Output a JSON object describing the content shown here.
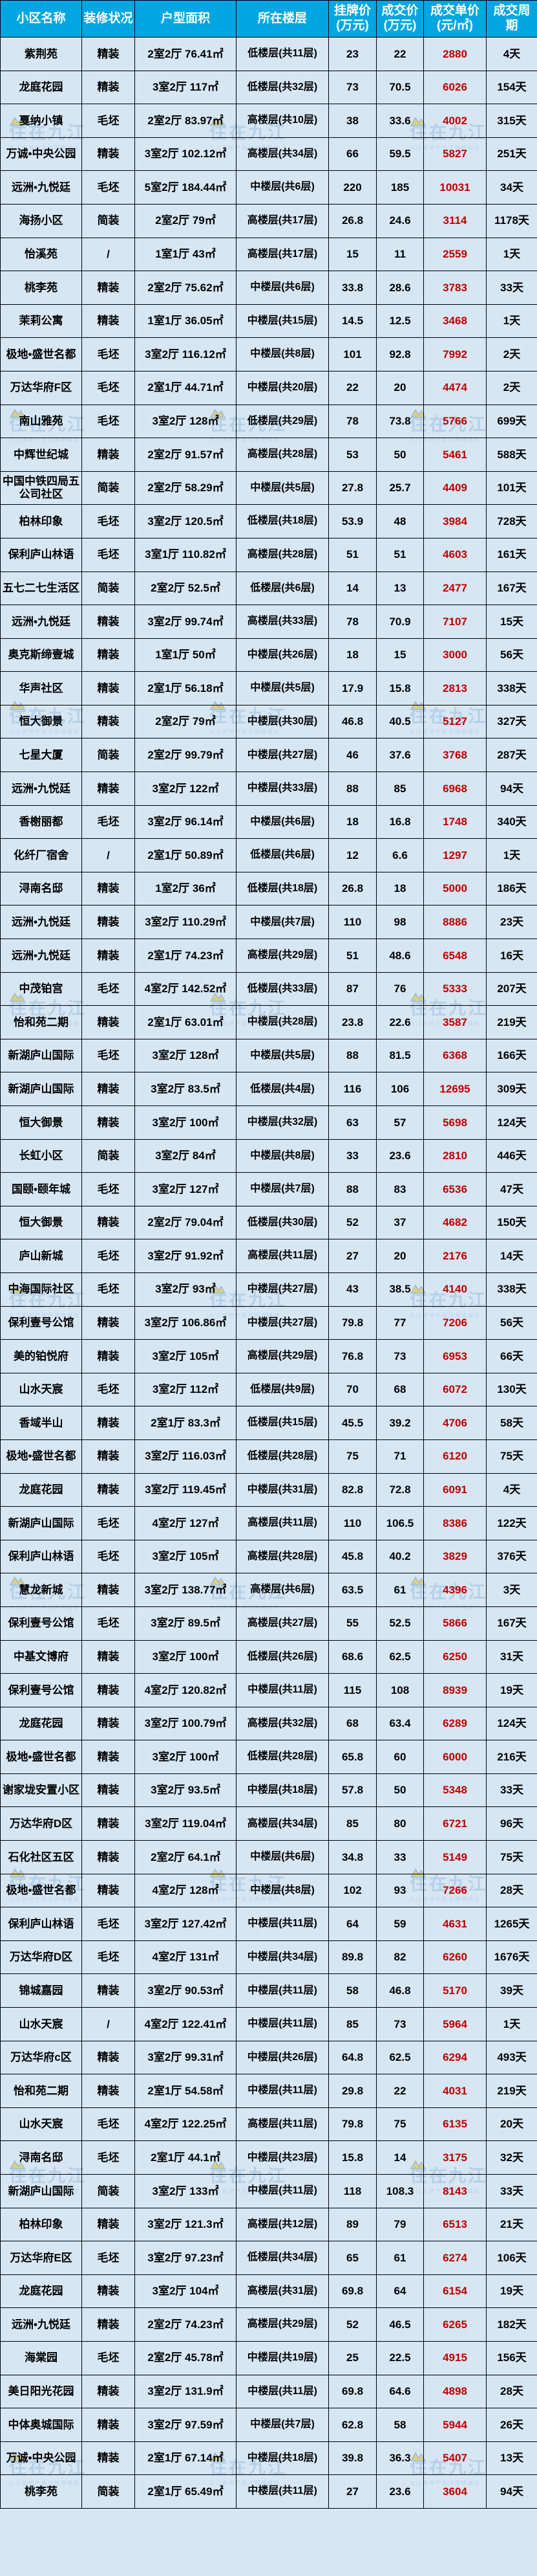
{
  "chart_data": {
    "type": "table",
    "columns": [
      {
        "key": "community-name",
        "label": "小区名称"
      },
      {
        "key": "decoration-status",
        "label": "装修状况"
      },
      {
        "key": "layout-area",
        "label": "户型面积"
      },
      {
        "key": "floor-level",
        "label": "所在楼层"
      },
      {
        "key": "listing-price",
        "label": "挂牌价\n(万元)"
      },
      {
        "key": "deal-price",
        "label": "成交价\n(万元)"
      },
      {
        "key": "unit-price",
        "label": "成交单价\n(元/㎡)"
      },
      {
        "key": "deal-cycle",
        "label": "成交周期"
      }
    ],
    "rows": [
      [
        "紫荆苑",
        "精装",
        "2室2厅 76.41㎡",
        "低楼层(共11层)",
        "23",
        "22",
        "2880",
        "4天"
      ],
      [
        "龙庭花园",
        "精装",
        "3室2厅 117㎡",
        "低楼层(共32层)",
        "73",
        "70.5",
        "6026",
        "154天"
      ],
      [
        "戛纳小镇",
        "毛坯",
        "2室2厅 83.97㎡",
        "高楼层(共10层)",
        "38",
        "33.6",
        "4002",
        "315天"
      ],
      [
        "万诚•中央公园",
        "精装",
        "3室2厅 102.12㎡",
        "高楼层(共34层)",
        "66",
        "59.5",
        "5827",
        "251天"
      ],
      [
        "远洲•九悦廷",
        "毛坯",
        "5室2厅 184.44㎡",
        "中楼层(共6层)",
        "220",
        "185",
        "10031",
        "34天"
      ],
      [
        "海扬小区",
        "简装",
        "2室2厅 79㎡",
        "高楼层(共17层)",
        "26.8",
        "24.6",
        "3114",
        "1178天"
      ],
      [
        "怡溪苑",
        "/",
        "1室1厅 43㎡",
        "高楼层(共17层)",
        "15",
        "11",
        "2559",
        "1天"
      ],
      [
        "桃李苑",
        "精装",
        "2室2厅 75.62㎡",
        "中楼层(共6层)",
        "33.8",
        "28.6",
        "3783",
        "33天"
      ],
      [
        "茉莉公寓",
        "精装",
        "1室1厅 36.05㎡",
        "中楼层(共15层)",
        "14.5",
        "12.5",
        "3468",
        "1天"
      ],
      [
        "极地•盛世名都",
        "毛坯",
        "3室2厅 116.12㎡",
        "中楼层(共8层)",
        "101",
        "92.8",
        "7992",
        "2天"
      ],
      [
        "万达华府F区",
        "毛坯",
        "2室1厅 44.71㎡",
        "中楼层(共20层)",
        "22",
        "20",
        "4474",
        "2天"
      ],
      [
        "南山雅苑",
        "毛坯",
        "3室2厅 128㎡",
        "低楼层(共29层)",
        "78",
        "73.8",
        "5766",
        "699天"
      ],
      [
        "中辉世纪城",
        "精装",
        "2室2厅 91.57㎡",
        "高楼层(共28层)",
        "53",
        "50",
        "5461",
        "588天"
      ],
      [
        "中国中铁四局五公司社区",
        "简装",
        "2室2厅 58.29㎡",
        "中楼层(共5层)",
        "27.8",
        "25.7",
        "4409",
        "101天"
      ],
      [
        "柏林印象",
        "毛坯",
        "3室2厅 120.5㎡",
        "低楼层(共18层)",
        "53.9",
        "48",
        "3984",
        "728天"
      ],
      [
        "保利庐山林语",
        "毛坯",
        "3室1厅 110.82㎡",
        "高楼层(共28层)",
        "51",
        "51",
        "4603",
        "161天"
      ],
      [
        "五七二七生活区",
        "简装",
        "2室2厅 52.5㎡",
        "低楼层(共6层)",
        "14",
        "13",
        "2477",
        "167天"
      ],
      [
        "远洲•九悦廷",
        "精装",
        "3室2厅 99.74㎡",
        "高楼层(共33层)",
        "78",
        "70.9",
        "7107",
        "15天"
      ],
      [
        "奥克斯缔壹城",
        "精装",
        "1室1厅 50㎡",
        "中楼层(共26层)",
        "18",
        "15",
        "3000",
        "56天"
      ],
      [
        "华声社区",
        "精装",
        "2室1厅 56.18㎡",
        "中楼层(共5层)",
        "17.9",
        "15.8",
        "2813",
        "338天"
      ],
      [
        "恒大御景",
        "精装",
        "2室2厅 79㎡",
        "中楼层(共30层)",
        "46.8",
        "40.5",
        "5127",
        "327天"
      ],
      [
        "七星大厦",
        "简装",
        "2室2厅 99.79㎡",
        "中楼层(共27层)",
        "46",
        "37.6",
        "3768",
        "287天"
      ],
      [
        "远洲•九悦廷",
        "精装",
        "3室2厅 122㎡",
        "中楼层(共33层)",
        "88",
        "85",
        "6968",
        "94天"
      ],
      [
        "香榭丽都",
        "毛坯",
        "3室2厅 96.14㎡",
        "中楼层(共6层)",
        "18",
        "16.8",
        "1748",
        "340天"
      ],
      [
        "化纤厂宿舍",
        "/",
        "2室1厅 50.89㎡",
        "低楼层(共6层)",
        "12",
        "6.6",
        "1297",
        "1天"
      ],
      [
        "浔南名邸",
        "精装",
        "1室2厅 36㎡",
        "低楼层(共18层)",
        "26.8",
        "18",
        "5000",
        "186天"
      ],
      [
        "远洲•九悦廷",
        "精装",
        "3室2厅 110.29㎡",
        "中楼层(共7层)",
        "110",
        "98",
        "8886",
        "23天"
      ],
      [
        "远洲•九悦廷",
        "精装",
        "2室1厅 74.23㎡",
        "高楼层(共29层)",
        "51",
        "48.6",
        "6548",
        "16天"
      ],
      [
        "中茂铂宫",
        "毛坯",
        "4室2厅 142.52㎡",
        "低楼层(共33层)",
        "87",
        "76",
        "5333",
        "207天"
      ],
      [
        "怡和苑二期",
        "精装",
        "2室1厅 63.01㎡",
        "中楼层(共28层)",
        "23.8",
        "22.6",
        "3587",
        "219天"
      ],
      [
        "新湖庐山国际",
        "毛坯",
        "3室2厅 128㎡",
        "中楼层(共5层)",
        "88",
        "81.5",
        "6368",
        "166天"
      ],
      [
        "新湖庐山国际",
        "精装",
        "3室2厅 83.5㎡",
        "低楼层(共4层)",
        "116",
        "106",
        "12695",
        "309天"
      ],
      [
        "恒大御景",
        "精装",
        "3室2厅 100㎡",
        "中楼层(共32层)",
        "63",
        "57",
        "5698",
        "124天"
      ],
      [
        "长虹小区",
        "简装",
        "3室2厅 84㎡",
        "中楼层(共8层)",
        "33",
        "23.6",
        "2810",
        "446天"
      ],
      [
        "国颐•颐年城",
        "毛坯",
        "3室2厅 127㎡",
        "中楼层(共7层)",
        "88",
        "83",
        "6536",
        "47天"
      ],
      [
        "恒大御景",
        "精装",
        "2室2厅 79.04㎡",
        "低楼层(共30层)",
        "52",
        "37",
        "4682",
        "150天"
      ],
      [
        "庐山新城",
        "毛坯",
        "3室2厅 91.92㎡",
        "高楼层(共11层)",
        "27",
        "20",
        "2176",
        "14天"
      ],
      [
        "中海国际社区",
        "毛坯",
        "3室2厅 93㎡",
        "中楼层(共27层)",
        "43",
        "38.5",
        "4140",
        "338天"
      ],
      [
        "保利壹号公馆",
        "精装",
        "3室2厅 106.86㎡",
        "中楼层(共27层)",
        "79.8",
        "77",
        "7206",
        "56天"
      ],
      [
        "美的铂悦府",
        "精装",
        "3室2厅 105㎡",
        "高楼层(共29层)",
        "76.8",
        "73",
        "6953",
        "66天"
      ],
      [
        "山水天宸",
        "毛坯",
        "3室2厅 112㎡",
        "低楼层(共9层)",
        "70",
        "68",
        "6072",
        "130天"
      ],
      [
        "香域半山",
        "精装",
        "2室1厅 83.3㎡",
        "低楼层(共15层)",
        "45.5",
        "39.2",
        "4706",
        "58天"
      ],
      [
        "极地•盛世名都",
        "精装",
        "3室2厅 116.03㎡",
        "低楼层(共28层)",
        "75",
        "71",
        "6120",
        "75天"
      ],
      [
        "龙庭花园",
        "精装",
        "3室2厅 119.45㎡",
        "中楼层(共31层)",
        "82.8",
        "72.8",
        "6091",
        "4天"
      ],
      [
        "新湖庐山国际",
        "毛坯",
        "4室2厅 127㎡",
        "高楼层(共11层)",
        "110",
        "106.5",
        "8386",
        "122天"
      ],
      [
        "保利庐山林语",
        "毛坯",
        "3室2厅 105㎡",
        "高楼层(共28层)",
        "45.8",
        "40.2",
        "3829",
        "376天"
      ],
      [
        "慧龙新城",
        "精装",
        "3室2厅 138.77㎡",
        "高楼层(共6层)",
        "63.5",
        "61",
        "4396",
        "3天"
      ],
      [
        "保利壹号公馆",
        "毛坯",
        "3室2厅 89.5㎡",
        "高楼层(共27层)",
        "55",
        "52.5",
        "5866",
        "167天"
      ],
      [
        "中基文博府",
        "精装",
        "3室2厅 100㎡",
        "低楼层(共26层)",
        "68.6",
        "62.5",
        "6250",
        "31天"
      ],
      [
        "保利壹号公馆",
        "精装",
        "4室2厅 120.82㎡",
        "中楼层(共11层)",
        "115",
        "108",
        "8939",
        "19天"
      ],
      [
        "龙庭花园",
        "精装",
        "3室2厅 100.79㎡",
        "高楼层(共32层)",
        "68",
        "63.4",
        "6289",
        "124天"
      ],
      [
        "极地•盛世名都",
        "精装",
        "3室2厅 100㎡",
        "低楼层(共28层)",
        "65.8",
        "60",
        "6000",
        "216天"
      ],
      [
        "谢家垅安置小区",
        "精装",
        "3室2厅 93.5㎡",
        "中楼层(共18层)",
        "57.8",
        "50",
        "5348",
        "33天"
      ],
      [
        "万达华府D区",
        "精装",
        "3室2厅 119.04㎡",
        "高楼层(共34层)",
        "85",
        "80",
        "6721",
        "96天"
      ],
      [
        "石化社区五区",
        "精装",
        "2室2厅 64.1㎡",
        "中楼层(共6层)",
        "34.8",
        "33",
        "5149",
        "75天"
      ],
      [
        "极地•盛世名都",
        "精装",
        "4室2厅 128㎡",
        "中楼层(共8层)",
        "102",
        "93",
        "7266",
        "28天"
      ],
      [
        "保利庐山林语",
        "毛坯",
        "3室2厅 127.42㎡",
        "中楼层(共11层)",
        "64",
        "59",
        "4631",
        "1265天"
      ],
      [
        "万达华府D区",
        "毛坯",
        "4室2厅 131㎡",
        "中楼层(共34层)",
        "89.8",
        "82",
        "6260",
        "1676天"
      ],
      [
        "锦城嘉园",
        "精装",
        "3室2厅 90.53㎡",
        "中楼层(共11层)",
        "58",
        "46.8",
        "5170",
        "39天"
      ],
      [
        "山水天宸",
        "/",
        "4室2厅 122.41㎡",
        "中楼层(共11层)",
        "85",
        "73",
        "5964",
        "1天"
      ],
      [
        "万达华府c区",
        "精装",
        "3室2厅 99.31㎡",
        "中楼层(共26层)",
        "64.8",
        "62.5",
        "6294",
        "493天"
      ],
      [
        "怡和苑二期",
        "精装",
        "2室1厅 54.58㎡",
        "中楼层(共11层)",
        "29.8",
        "22",
        "4031",
        "219天"
      ],
      [
        "山水天宸",
        "毛坯",
        "4室2厅 122.25㎡",
        "高楼层(共11层)",
        "79.8",
        "75",
        "6135",
        "20天"
      ],
      [
        "浔南名邸",
        "毛坯",
        "2室1厅 44.1㎡",
        "中楼层(共23层)",
        "15.8",
        "14",
        "3175",
        "32天"
      ],
      [
        "新湖庐山国际",
        "简装",
        "3室2厅 133㎡",
        "中楼层(共11层)",
        "118",
        "108.3",
        "8143",
        "33天"
      ],
      [
        "柏林印象",
        "精装",
        "3室2厅 121.3㎡",
        "高楼层(共12层)",
        "89",
        "79",
        "6513",
        "21天"
      ],
      [
        "万达华府E区",
        "毛坯",
        "3室2厅 97.23㎡",
        "低楼层(共34层)",
        "65",
        "61",
        "6274",
        "106天"
      ],
      [
        "龙庭花园",
        "精装",
        "3室2厅 104㎡",
        "高楼层(共31层)",
        "69.8",
        "64",
        "6154",
        "19天"
      ],
      [
        "远洲•九悦廷",
        "精装",
        "2室2厅 74.23㎡",
        "高楼层(共29层)",
        "52",
        "46.5",
        "6265",
        "182天"
      ],
      [
        "海棠园",
        "毛坯",
        "2室2厅 45.78㎡",
        "中楼层(共19层)",
        "25",
        "22.5",
        "4915",
        "156天"
      ],
      [
        "美日阳光花园",
        "精装",
        "3室2厅 131.9㎡",
        "中楼层(共11层)",
        "69.8",
        "64.6",
        "4898",
        "28天"
      ],
      [
        "中体奥城国际",
        "精装",
        "3室2厅 97.59㎡",
        "中楼层(共7层)",
        "62.8",
        "58",
        "5944",
        "26天"
      ],
      [
        "万诚•中央公园",
        "精装",
        "2室1厅 67.14㎡",
        "中楼层(共18层)",
        "39.8",
        "36.3",
        "5407",
        "13天"
      ],
      [
        "桃李苑",
        "简装",
        "2室1厅 65.49㎡",
        "中楼层(共11层)",
        "27",
        "23.6",
        "3604",
        "94天"
      ]
    ]
  },
  "watermark": {
    "text": "住在九江",
    "subtext": "九江房地产资讯网络媒体"
  },
  "colors": {
    "header_bg": "#00a6e2",
    "header_text": "#ffffff",
    "row_bg": "#d7e6f3",
    "border": "#000000",
    "body_text": "#000000",
    "unit_price_text": "#c00000",
    "watermark_text": "#9cc2e2"
  }
}
